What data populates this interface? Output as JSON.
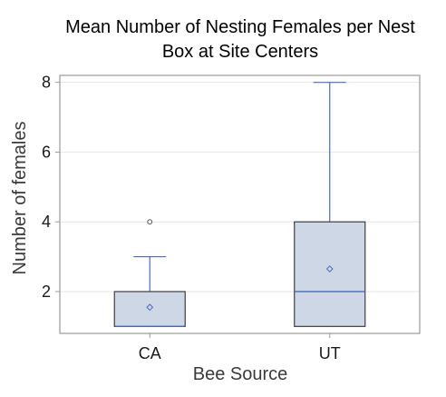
{
  "chart_data": {
    "type": "box",
    "title_line1": "Mean Number of Nesting Females per Nest",
    "title_line2": "Box at Site Centers",
    "xlabel": "Bee Source",
    "ylabel": "Number of  females",
    "categories": [
      "CA",
      "UT"
    ],
    "yticks": [
      "2",
      "4",
      "6",
      "8"
    ],
    "ylim": [
      0.8,
      8.2
    ],
    "grid": "horizontal",
    "boxes": [
      {
        "category": "CA",
        "min": 1,
        "q1": 1,
        "median": 1,
        "q3": 2,
        "max": 3,
        "mean": 1.55,
        "outliers": [
          4
        ]
      },
      {
        "category": "UT",
        "min": 1,
        "q1": 1,
        "median": 2,
        "q3": 4,
        "max": 8,
        "mean": 2.65,
        "outliers": []
      }
    ],
    "colors": {
      "box_fill": "#cdd7e6",
      "box_edge": "#3f3f3f",
      "whisker": "#4a6bbf",
      "median": "#4a6bbf",
      "mean_marker": "#4a6bbf",
      "outlier": "#555555",
      "grid": "#e6e6e6",
      "frame": "#9a9a9a"
    }
  }
}
